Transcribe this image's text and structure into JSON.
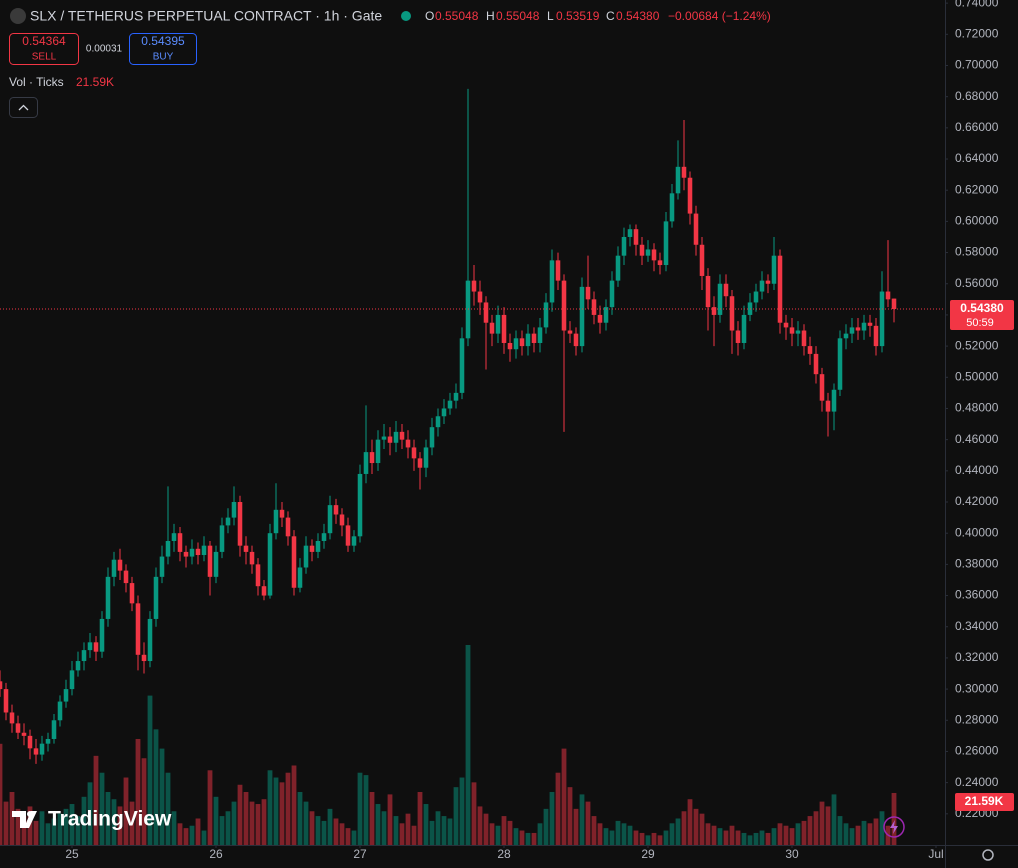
{
  "header": {
    "title": "SLX / TETHERUS PERPETUAL CONTRACT · 1h · Gate",
    "ohlc": [
      {
        "label": "O",
        "value": "0.55048"
      },
      {
        "label": "H",
        "value": "0.55048"
      },
      {
        "label": "L",
        "value": "0.53519"
      },
      {
        "label": "C",
        "value": "0.54380"
      }
    ],
    "change": "−0.00684 (−1.24%)"
  },
  "trade": {
    "sell_price": "0.54364",
    "sell": "SELL",
    "spread": "0.00031",
    "buy_price": "0.54395",
    "buy": "BUY"
  },
  "volume_legend": {
    "label": "Vol · Ticks",
    "value": "21.59K"
  },
  "logo": "TradingView",
  "chart_data": {
    "type": "candlestick",
    "up_color": "#089981",
    "down_color": "#f23645",
    "grid": false,
    "x": [
      0,
      1,
      2,
      3,
      4,
      5,
      6,
      7,
      8,
      9,
      10,
      11,
      12,
      13,
      14,
      15,
      16,
      17,
      18,
      19,
      20,
      21,
      22,
      23,
      24,
      25,
      26,
      27,
      28,
      29,
      30,
      31,
      32,
      33,
      34,
      35,
      36,
      37,
      38,
      39,
      40,
      41,
      42,
      43,
      44,
      45,
      46,
      47,
      48,
      49,
      50,
      51,
      52,
      53,
      54,
      55,
      56,
      57,
      58,
      59,
      60,
      61,
      62,
      63,
      64,
      65,
      66,
      67,
      68,
      69,
      70,
      71,
      72,
      73,
      74,
      75,
      76,
      77,
      78,
      79,
      80,
      81,
      82,
      83,
      84,
      85,
      86,
      87,
      88,
      89,
      90,
      91,
      92,
      93,
      94,
      95,
      96,
      97,
      98,
      99,
      100,
      101,
      102,
      103,
      104,
      105,
      106,
      107,
      108,
      109,
      110,
      111,
      112,
      113,
      114,
      115,
      116,
      117,
      118,
      119,
      120,
      121,
      122,
      123,
      124,
      125,
      126,
      127,
      128,
      129,
      130,
      131,
      132,
      133,
      134,
      135,
      136,
      137,
      138,
      139,
      140,
      141,
      142,
      143,
      144,
      145,
      146,
      147,
      148,
      149
    ],
    "open": [
      0.305,
      0.3,
      0.285,
      0.278,
      0.272,
      0.27,
      0.262,
      0.258,
      0.265,
      0.268,
      0.28,
      0.292,
      0.3,
      0.312,
      0.318,
      0.325,
      0.33,
      0.324,
      0.345,
      0.372,
      0.383,
      0.376,
      0.368,
      0.355,
      0.322,
      0.318,
      0.345,
      0.372,
      0.385,
      0.395,
      0.4,
      0.388,
      0.385,
      0.39,
      0.386,
      0.392,
      0.372,
      0.388,
      0.405,
      0.41,
      0.42,
      0.392,
      0.388,
      0.38,
      0.366,
      0.36,
      0.4,
      0.415,
      0.41,
      0.398,
      0.365,
      0.378,
      0.392,
      0.388,
      0.395,
      0.4,
      0.418,
      0.412,
      0.405,
      0.392,
      0.398,
      0.438,
      0.452,
      0.445,
      0.46,
      0.462,
      0.458,
      0.465,
      0.46,
      0.455,
      0.448,
      0.442,
      0.455,
      0.468,
      0.475,
      0.48,
      0.485,
      0.49,
      0.525,
      0.562,
      0.555,
      0.548,
      0.535,
      0.528,
      0.54,
      0.522,
      0.518,
      0.525,
      0.52,
      0.528,
      0.522,
      0.532,
      0.548,
      0.575,
      0.562,
      0.53,
      0.528,
      0.52,
      0.558,
      0.55,
      0.54,
      0.535,
      0.545,
      0.562,
      0.578,
      0.59,
      0.595,
      0.585,
      0.578,
      0.582,
      0.575,
      0.572,
      0.6,
      0.618,
      0.635,
      0.628,
      0.605,
      0.585,
      0.565,
      0.545,
      0.54,
      0.56,
      0.552,
      0.53,
      0.522,
      0.54,
      0.548,
      0.555,
      0.562,
      0.56,
      0.578,
      0.535,
      0.532,
      0.528,
      0.53,
      0.52,
      0.515,
      0.502,
      0.485,
      0.478,
      0.492,
      0.525,
      0.528,
      0.532,
      0.53,
      0.535,
      0.533,
      0.52,
      0.555,
      0.55048
    ],
    "high": [
      0.312,
      0.304,
      0.29,
      0.283,
      0.278,
      0.274,
      0.268,
      0.27,
      0.272,
      0.284,
      0.296,
      0.306,
      0.318,
      0.324,
      0.33,
      0.336,
      0.334,
      0.35,
      0.378,
      0.388,
      0.39,
      0.38,
      0.372,
      0.36,
      0.33,
      0.35,
      0.378,
      0.392,
      0.43,
      0.406,
      0.404,
      0.392,
      0.396,
      0.394,
      0.398,
      0.395,
      0.392,
      0.41,
      0.416,
      0.43,
      0.424,
      0.398,
      0.392,
      0.384,
      0.37,
      0.406,
      0.432,
      0.42,
      0.414,
      0.402,
      0.384,
      0.398,
      0.396,
      0.4,
      0.406,
      0.424,
      0.422,
      0.416,
      0.41,
      0.402,
      0.444,
      0.482,
      0.46,
      0.466,
      0.47,
      0.468,
      0.472,
      0.47,
      0.466,
      0.46,
      0.452,
      0.46,
      0.474,
      0.48,
      0.486,
      0.49,
      0.496,
      0.532,
      0.685,
      0.572,
      0.562,
      0.552,
      0.54,
      0.546,
      0.545,
      0.528,
      0.53,
      0.53,
      0.534,
      0.532,
      0.538,
      0.554,
      0.582,
      0.58,
      0.566,
      0.536,
      0.532,
      0.564,
      0.578,
      0.555,
      0.546,
      0.55,
      0.568,
      0.584,
      0.596,
      0.598,
      0.598,
      0.59,
      0.588,
      0.586,
      0.58,
      0.606,
      0.624,
      0.652,
      0.665,
      0.632,
      0.61,
      0.59,
      0.57,
      0.552,
      0.566,
      0.566,
      0.556,
      0.536,
      0.546,
      0.554,
      0.56,
      0.568,
      0.566,
      0.59,
      0.582,
      0.54,
      0.538,
      0.536,
      0.534,
      0.526,
      0.52,
      0.506,
      0.49,
      0.496,
      0.53,
      0.534,
      0.538,
      0.538,
      0.54,
      0.54,
      0.538,
      0.568,
      0.588,
      0.55048
    ],
    "low": [
      0.295,
      0.28,
      0.272,
      0.268,
      0.264,
      0.255,
      0.252,
      0.254,
      0.26,
      0.265,
      0.276,
      0.288,
      0.296,
      0.308,
      0.312,
      0.32,
      0.318,
      0.32,
      0.34,
      0.366,
      0.37,
      0.362,
      0.35,
      0.312,
      0.31,
      0.314,
      0.34,
      0.368,
      0.38,
      0.388,
      0.382,
      0.378,
      0.38,
      0.38,
      0.382,
      0.36,
      0.368,
      0.384,
      0.4,
      0.405,
      0.385,
      0.38,
      0.374,
      0.36,
      0.357,
      0.358,
      0.396,
      0.404,
      0.392,
      0.36,
      0.362,
      0.374,
      0.382,
      0.384,
      0.39,
      0.396,
      0.406,
      0.398,
      0.388,
      0.388,
      0.394,
      0.432,
      0.438,
      0.44,
      0.454,
      0.45,
      0.452,
      0.454,
      0.448,
      0.44,
      0.428,
      0.436,
      0.45,
      0.462,
      0.47,
      0.476,
      0.48,
      0.486,
      0.52,
      0.546,
      0.54,
      0.505,
      0.52,
      0.522,
      0.515,
      0.51,
      0.512,
      0.514,
      0.514,
      0.516,
      0.516,
      0.528,
      0.542,
      0.556,
      0.465,
      0.522,
      0.514,
      0.516,
      0.544,
      0.534,
      0.528,
      0.53,
      0.54,
      0.558,
      0.572,
      0.584,
      0.578,
      0.572,
      0.574,
      0.568,
      0.566,
      0.568,
      0.596,
      0.614,
      0.62,
      0.598,
      0.578,
      0.556,
      0.53,
      0.52,
      0.535,
      0.545,
      0.515,
      0.514,
      0.518,
      0.536,
      0.542,
      0.55,
      0.554,
      0.556,
      0.528,
      0.524,
      0.52,
      0.52,
      0.514,
      0.508,
      0.496,
      0.478,
      0.462,
      0.466,
      0.488,
      0.518,
      0.522,
      0.524,
      0.524,
      0.526,
      0.514,
      0.516,
      0.545,
      0.53519
    ],
    "close": [
      0.3,
      0.285,
      0.278,
      0.272,
      0.27,
      0.262,
      0.258,
      0.265,
      0.268,
      0.28,
      0.292,
      0.3,
      0.312,
      0.318,
      0.325,
      0.33,
      0.324,
      0.345,
      0.372,
      0.383,
      0.376,
      0.368,
      0.355,
      0.322,
      0.318,
      0.345,
      0.372,
      0.385,
      0.395,
      0.4,
      0.388,
      0.385,
      0.39,
      0.386,
      0.392,
      0.372,
      0.388,
      0.405,
      0.41,
      0.42,
      0.392,
      0.388,
      0.38,
      0.366,
      0.36,
      0.4,
      0.415,
      0.41,
      0.398,
      0.365,
      0.378,
      0.392,
      0.388,
      0.395,
      0.4,
      0.418,
      0.412,
      0.405,
      0.392,
      0.398,
      0.438,
      0.452,
      0.445,
      0.46,
      0.462,
      0.458,
      0.465,
      0.46,
      0.455,
      0.448,
      0.442,
      0.455,
      0.468,
      0.475,
      0.48,
      0.485,
      0.49,
      0.525,
      0.562,
      0.555,
      0.548,
      0.535,
      0.528,
      0.54,
      0.522,
      0.518,
      0.525,
      0.52,
      0.528,
      0.522,
      0.532,
      0.548,
      0.575,
      0.562,
      0.53,
      0.528,
      0.52,
      0.558,
      0.55,
      0.54,
      0.535,
      0.545,
      0.562,
      0.578,
      0.59,
      0.595,
      0.585,
      0.578,
      0.582,
      0.575,
      0.572,
      0.6,
      0.618,
      0.635,
      0.628,
      0.605,
      0.585,
      0.565,
      0.545,
      0.54,
      0.56,
      0.552,
      0.53,
      0.522,
      0.54,
      0.548,
      0.555,
      0.562,
      0.56,
      0.578,
      0.535,
      0.532,
      0.528,
      0.53,
      0.52,
      0.515,
      0.502,
      0.485,
      0.478,
      0.492,
      0.525,
      0.528,
      0.532,
      0.53,
      0.535,
      0.533,
      0.52,
      0.555,
      0.55,
      0.5438
    ],
    "volume": [
      42000,
      18000,
      22000,
      15000,
      12000,
      16000,
      10000,
      14000,
      9000,
      11000,
      13000,
      15000,
      17000,
      12000,
      20000,
      26000,
      37000,
      30000,
      22000,
      19000,
      16000,
      28000,
      18000,
      44000,
      36000,
      62000,
      48000,
      40000,
      30000,
      14000,
      9000,
      7000,
      8000,
      11000,
      6000,
      31000,
      20000,
      12000,
      14000,
      18000,
      25000,
      22000,
      18000,
      17000,
      19000,
      31000,
      28000,
      26000,
      30000,
      33000,
      22000,
      18000,
      14000,
      12000,
      10000,
      15000,
      11000,
      9000,
      7000,
      6000,
      30000,
      29000,
      22000,
      17000,
      14000,
      21000,
      12000,
      9000,
      13000,
      8000,
      22000,
      17000,
      10000,
      14000,
      12000,
      11000,
      24000,
      28000,
      83000,
      26000,
      16000,
      13000,
      9000,
      8000,
      12000,
      10000,
      7000,
      6000,
      5000,
      5000,
      9000,
      15000,
      22000,
      30000,
      40000,
      24000,
      15000,
      21000,
      18000,
      12000,
      9000,
      7000,
      6000,
      10000,
      9000,
      8000,
      6000,
      5000,
      4000,
      5000,
      4000,
      6000,
      9000,
      11000,
      14000,
      19000,
      15000,
      13000,
      9000,
      8000,
      7000,
      6000,
      8000,
      6000,
      5000,
      4000,
      5000,
      6000,
      5000,
      7000,
      9000,
      8000,
      7000,
      9000,
      10000,
      12000,
      14000,
      18000,
      16000,
      21000,
      12000,
      9000,
      7000,
      8000,
      10000,
      9000,
      11000,
      14000,
      8000,
      21590
    ],
    "volume_label": "21.59K",
    "last_price_label": "0.54380",
    "countdown": "50:59",
    "xlim": [
      0,
      157.5
    ],
    "xticks": [
      {
        "value": 12,
        "label": "25"
      },
      {
        "value": 36,
        "label": "26"
      },
      {
        "value": 60,
        "label": "27"
      },
      {
        "value": 84,
        "label": "28"
      },
      {
        "value": 108,
        "label": "29"
      },
      {
        "value": 132,
        "label": "30"
      },
      {
        "value": 156,
        "label": "Jul"
      }
    ],
    "ylim": [
      0.2,
      0.742
    ],
    "yticks": [
      {
        "value": 0.22,
        "label": "0.22000"
      },
      {
        "value": 0.24,
        "label": "0.24000"
      },
      {
        "value": 0.26,
        "label": "0.26000"
      },
      {
        "value": 0.28,
        "label": "0.28000"
      },
      {
        "value": 0.3,
        "label": "0.30000"
      },
      {
        "value": 0.32,
        "label": "0.32000"
      },
      {
        "value": 0.34,
        "label": "0.34000"
      },
      {
        "value": 0.36,
        "label": "0.36000"
      },
      {
        "value": 0.38,
        "label": "0.38000"
      },
      {
        "value": 0.4,
        "label": "0.40000"
      },
      {
        "value": 0.42,
        "label": "0.42000"
      },
      {
        "value": 0.44,
        "label": "0.44000"
      },
      {
        "value": 0.46,
        "label": "0.46000"
      },
      {
        "value": 0.48,
        "label": "0.48000"
      },
      {
        "value": 0.5,
        "label": "0.50000"
      },
      {
        "value": 0.52,
        "label": "0.52000"
      },
      {
        "value": 0.54,
        "label": "0.54000"
      },
      {
        "value": 0.56,
        "label": "0.56000"
      },
      {
        "value": 0.58,
        "label": "0.58000"
      },
      {
        "value": 0.6,
        "label": "0.60000"
      },
      {
        "value": 0.62,
        "label": "0.62000"
      },
      {
        "value": 0.64,
        "label": "0.64000"
      },
      {
        "value": 0.66,
        "label": "0.66000"
      },
      {
        "value": 0.68,
        "label": "0.68000"
      },
      {
        "value": 0.7,
        "label": "0.70000"
      },
      {
        "value": 0.72,
        "label": "0.72000"
      },
      {
        "value": 0.74,
        "label": "0.74000"
      }
    ]
  }
}
